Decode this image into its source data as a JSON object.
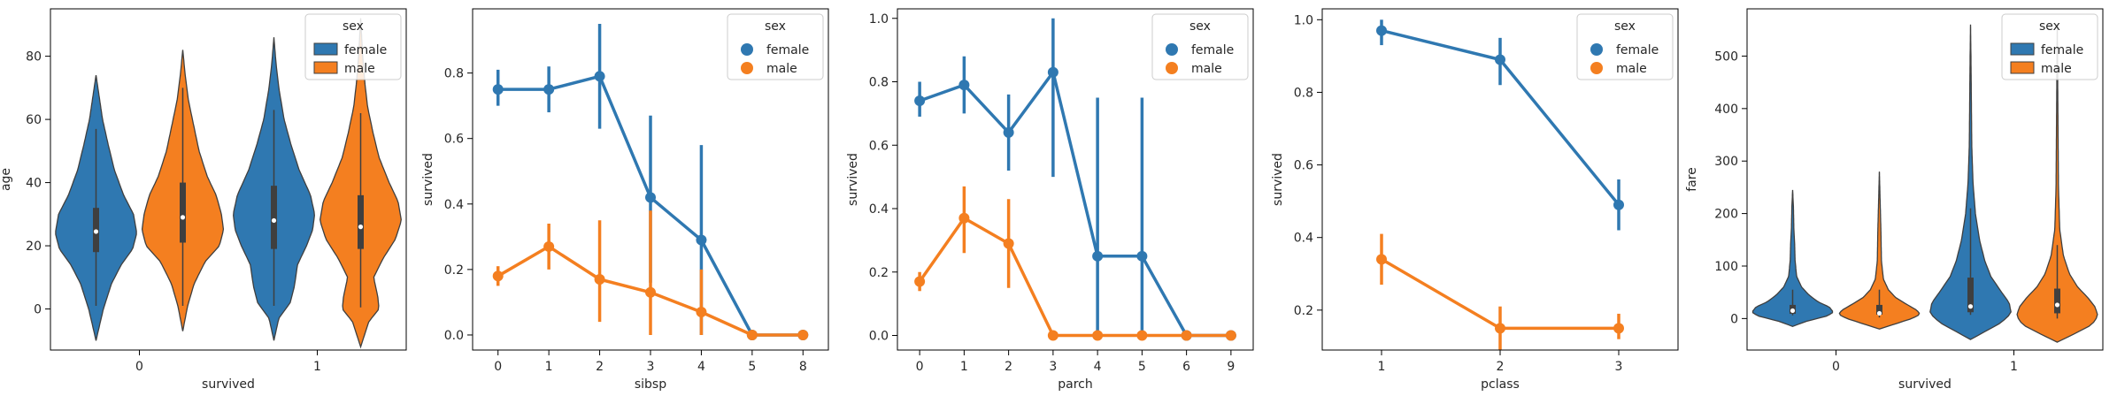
{
  "colors": {
    "female": "#2f78b1",
    "male": "#f47f20",
    "axis": "#000000",
    "violin_edge": "#3f3f3f",
    "legend_frame": "#cccccc"
  },
  "chart_data": [
    {
      "type": "violin",
      "xlabel": "survived",
      "ylabel": "age",
      "categories": [
        "0",
        "1"
      ],
      "ylim": [
        -13,
        95
      ],
      "yticks": [
        0,
        20,
        40,
        60,
        80
      ],
      "yticklabels": [
        "0",
        "20",
        "40",
        "60",
        "80"
      ],
      "legend": {
        "title": "sex",
        "placement": "top-right",
        "entries": [
          "female",
          "male"
        ]
      },
      "series": [
        {
          "name": "female",
          "stats": [
            {
              "category": "0",
              "ymin": -10,
              "ymax": 74,
              "q1": 18,
              "median": 24.5,
              "q3": 32,
              "wmin": 1,
              "wmax": 57,
              "profile": [
                [
                  -10,
                  0
                ],
                [
                  0,
                  0.18
                ],
                [
                  8,
                  0.38
                ],
                [
                  14,
                  0.62
                ],
                [
                  19,
                  0.9
                ],
                [
                  24,
                  1.0
                ],
                [
                  30,
                  0.92
                ],
                [
                  36,
                  0.68
                ],
                [
                  44,
                  0.45
                ],
                [
                  52,
                  0.3
                ],
                [
                  60,
                  0.16
                ],
                [
                  67,
                  0.08
                ],
                [
                  74,
                  0
                ]
              ]
            },
            {
              "category": "1",
              "ymin": -10,
              "ymax": 86,
              "q1": 19,
              "median": 28,
              "q3": 39,
              "wmin": 1,
              "wmax": 63,
              "profile": [
                [
                  -10,
                  0
                ],
                [
                  -3,
                  0.12
                ],
                [
                  2,
                  0.4
                ],
                [
                  7,
                  0.5
                ],
                [
                  14,
                  0.58
                ],
                [
                  20,
                  0.8
                ],
                [
                  25,
                  0.95
                ],
                [
                  30,
                  1.0
                ],
                [
                  36,
                  0.9
                ],
                [
                  44,
                  0.62
                ],
                [
                  52,
                  0.42
                ],
                [
                  60,
                  0.25
                ],
                [
                  70,
                  0.12
                ],
                [
                  78,
                  0.05
                ],
                [
                  86,
                  0
                ]
              ]
            }
          ]
        },
        {
          "name": "male",
          "stats": [
            {
              "category": "0",
              "ymin": -7,
              "ymax": 82,
              "q1": 21,
              "median": 29,
              "q3": 40,
              "wmin": 1,
              "wmax": 70,
              "profile": [
                [
                  -7,
                  0
                ],
                [
                  1,
                  0.12
                ],
                [
                  8,
                  0.28
                ],
                [
                  15,
                  0.55
                ],
                [
                  20,
                  0.9
                ],
                [
                  25,
                  1.0
                ],
                [
                  30,
                  0.95
                ],
                [
                  36,
                  0.82
                ],
                [
                  42,
                  0.6
                ],
                [
                  50,
                  0.4
                ],
                [
                  58,
                  0.27
                ],
                [
                  66,
                  0.14
                ],
                [
                  74,
                  0.06
                ],
                [
                  82,
                  0
                ]
              ]
            },
            {
              "category": "1",
              "ymin": -12,
              "ymax": 92,
              "q1": 19,
              "median": 26,
              "q3": 36,
              "wmin": 0.5,
              "wmax": 62,
              "profile": [
                [
                  -12,
                  0
                ],
                [
                  -4,
                  0.2
                ],
                [
                  0,
                  0.45
                ],
                [
                  4,
                  0.42
                ],
                [
                  10,
                  0.32
                ],
                [
                  16,
                  0.55
                ],
                [
                  22,
                  0.85
                ],
                [
                  28,
                  1.0
                ],
                [
                  34,
                  0.92
                ],
                [
                  40,
                  0.7
                ],
                [
                  48,
                  0.45
                ],
                [
                  56,
                  0.3
                ],
                [
                  64,
                  0.17
                ],
                [
                  72,
                  0.1
                ],
                [
                  80,
                  0.05
                ],
                [
                  92,
                  0
                ]
              ]
            }
          ]
        }
      ]
    },
    {
      "type": "point",
      "xlabel": "sibsp",
      "ylabel": "survived",
      "categories": [
        "0",
        "1",
        "2",
        "3",
        "4",
        "5",
        "8"
      ],
      "ylim": [
        -0.046,
        0.996
      ],
      "yticks": [
        0,
        0.2,
        0.4,
        0.6,
        0.8
      ],
      "yticklabels": [
        "0.0",
        "0.2",
        "0.4",
        "0.6",
        "0.8"
      ],
      "legend": {
        "title": "sex",
        "placement": "top-right",
        "entries": [
          "female",
          "male"
        ]
      },
      "series": [
        {
          "name": "female",
          "values": [
            0.75,
            0.75,
            0.79,
            0.42,
            0.29,
            0.0,
            0.0
          ],
          "ci": [
            [
              0.7,
              0.81
            ],
            [
              0.68,
              0.82
            ],
            [
              0.63,
              0.95
            ],
            [
              0.16,
              0.67
            ],
            [
              0.0,
              0.58
            ],
            [
              0.0,
              0.0
            ],
            [
              0.0,
              0.0
            ]
          ]
        },
        {
          "name": "male",
          "values": [
            0.18,
            0.27,
            0.17,
            0.13,
            0.07,
            0.0,
            0.0
          ],
          "ci": [
            [
              0.15,
              0.21
            ],
            [
              0.2,
              0.34
            ],
            [
              0.04,
              0.35
            ],
            [
              0.0,
              0.38
            ],
            [
              0.0,
              0.2
            ],
            [
              0.0,
              0.0
            ],
            [
              0.0,
              0.0
            ]
          ]
        }
      ]
    },
    {
      "type": "point",
      "xlabel": "parch",
      "ylabel": "survived",
      "categories": [
        "0",
        "1",
        "2",
        "3",
        "4",
        "5",
        "6",
        "9"
      ],
      "ylim": [
        -0.046,
        1.03
      ],
      "yticks": [
        0,
        0.2,
        0.4,
        0.6,
        0.8,
        1.0
      ],
      "yticklabels": [
        "0.0",
        "0.2",
        "0.4",
        "0.6",
        "0.8",
        "1.0"
      ],
      "legend": {
        "title": "sex",
        "placement": "top-right",
        "entries": [
          "female",
          "male"
        ]
      },
      "series": [
        {
          "name": "female",
          "values": [
            0.74,
            0.79,
            0.64,
            0.83,
            0.25,
            0.25,
            0.0,
            0.0
          ],
          "ci": [
            [
              0.69,
              0.8
            ],
            [
              0.7,
              0.88
            ],
            [
              0.52,
              0.76
            ],
            [
              0.5,
              1.0
            ],
            [
              0.0,
              0.75
            ],
            [
              0.0,
              0.75
            ],
            [
              0.0,
              0.0
            ],
            [
              0.0,
              0.0
            ]
          ]
        },
        {
          "name": "male",
          "values": [
            0.17,
            0.37,
            0.29,
            0.0,
            0.0,
            0.0,
            0.0,
            0.0
          ],
          "ci": [
            [
              0.14,
              0.2
            ],
            [
              0.26,
              0.47
            ],
            [
              0.15,
              0.43
            ],
            [
              0.0,
              0.0
            ],
            [
              0.0,
              0.0
            ],
            [
              0.0,
              0.0
            ],
            [
              0.0,
              0.0
            ],
            [
              0.0,
              0.0
            ]
          ]
        }
      ]
    },
    {
      "type": "point",
      "xlabel": "pclass",
      "ylabel": "survived",
      "categories": [
        "1",
        "2",
        "3"
      ],
      "ylim": [
        0.09,
        1.03
      ],
      "yticks": [
        0.2,
        0.4,
        0.6,
        0.8,
        1.0
      ],
      "yticklabels": [
        "0.2",
        "0.4",
        "0.6",
        "0.8",
        "1.0"
      ],
      "legend": {
        "title": "sex",
        "placement": "top-right",
        "entries": [
          "female",
          "male"
        ]
      },
      "series": [
        {
          "name": "female",
          "values": [
            0.97,
            0.89,
            0.49
          ],
          "ci": [
            [
              0.93,
              1.0
            ],
            [
              0.82,
              0.95
            ],
            [
              0.42,
              0.56
            ]
          ]
        },
        {
          "name": "male",
          "values": [
            0.34,
            0.15,
            0.15
          ],
          "ci": [
            [
              0.27,
              0.41
            ],
            [
              0.09,
              0.21
            ],
            [
              0.12,
              0.19
            ]
          ]
        }
      ]
    },
    {
      "type": "violin",
      "xlabel": "survived",
      "ylabel": "fare",
      "categories": [
        "0",
        "1"
      ],
      "ylim": [
        -60,
        590
      ],
      "yticks": [
        0,
        100,
        200,
        300,
        400,
        500
      ],
      "yticklabels": [
        "0",
        "100",
        "200",
        "300",
        "400",
        "500"
      ],
      "legend": {
        "title": "sex",
        "placement": "top-right",
        "entries": [
          "female",
          "male"
        ]
      },
      "series": [
        {
          "name": "female",
          "stats": [
            {
              "category": "0",
              "ymin": -15,
              "ymax": 245,
              "q1": 9,
              "median": 15,
              "q3": 26,
              "wmin": 6,
              "wmax": 55,
              "profile": [
                [
                  -15,
                  0
                ],
                [
                  -5,
                  0.35
                ],
                [
                  5,
                  0.85
                ],
                [
                  12,
                  1.0
                ],
                [
                  22,
                  0.9
                ],
                [
                  32,
                  0.62
                ],
                [
                  45,
                  0.4
                ],
                [
                  60,
                  0.22
                ],
                [
                  80,
                  0.1
                ],
                [
                  110,
                  0.06
                ],
                [
                  140,
                  0.05
                ],
                [
                  170,
                  0.03
                ],
                [
                  210,
                  0.02
                ],
                [
                  245,
                  0
                ]
              ]
            },
            {
              "category": "1",
              "ymin": -40,
              "ymax": 560,
              "q1": 12,
              "median": 23,
              "q3": 78,
              "wmin": 7,
              "wmax": 210,
              "profile": [
                [
                  -40,
                  0
                ],
                [
                  -25,
                  0.35
                ],
                [
                  -8,
                  0.75
                ],
                [
                  10,
                  1.0
                ],
                [
                  30,
                  0.95
                ],
                [
                  55,
                  0.72
                ],
                [
                  80,
                  0.5
                ],
                [
                  110,
                  0.35
                ],
                [
                  150,
                  0.22
                ],
                [
                  200,
                  0.12
                ],
                [
                  260,
                  0.06
                ],
                [
                  330,
                  0.03
                ],
                [
                  420,
                  0.02
                ],
                [
                  500,
                  0.01
                ],
                [
                  560,
                  0
                ]
              ]
            }
          ]
        },
        {
          "name": "male",
          "stats": [
            {
              "category": "0",
              "ymin": -20,
              "ymax": 280,
              "q1": 7.5,
              "median": 10,
              "q3": 26,
              "wmin": 2,
              "wmax": 55,
              "profile": [
                [
                  -20,
                  0
                ],
                [
                  -10,
                  0.4
                ],
                [
                  0,
                  0.8
                ],
                [
                  8,
                  1.0
                ],
                [
                  16,
                  0.92
                ],
                [
                  28,
                  0.65
                ],
                [
                  40,
                  0.4
                ],
                [
                  55,
                  0.22
                ],
                [
                  75,
                  0.1
                ],
                [
                  110,
                  0.05
                ],
                [
                  160,
                  0.04
                ],
                [
                  220,
                  0.02
                ],
                [
                  280,
                  0
                ]
              ]
            },
            {
              "category": "1",
              "ymin": -45,
              "ymax": 560,
              "q1": 10,
              "median": 26,
              "q3": 57,
              "wmin": 0,
              "wmax": 140,
              "profile": [
                [
                  -45,
                  0
                ],
                [
                  -30,
                  0.4
                ],
                [
                  -12,
                  0.85
                ],
                [
                  5,
                  1.0
                ],
                [
                  22,
                  0.93
                ],
                [
                  40,
                  0.75
                ],
                [
                  60,
                  0.5
                ],
                [
                  85,
                  0.3
                ],
                [
                  120,
                  0.15
                ],
                [
                  170,
                  0.06
                ],
                [
                  250,
                  0.03
                ],
                [
                  350,
                  0.02
                ],
                [
                  460,
                  0.01
                ],
                [
                  560,
                  0
                ]
              ]
            }
          ]
        }
      ]
    }
  ]
}
